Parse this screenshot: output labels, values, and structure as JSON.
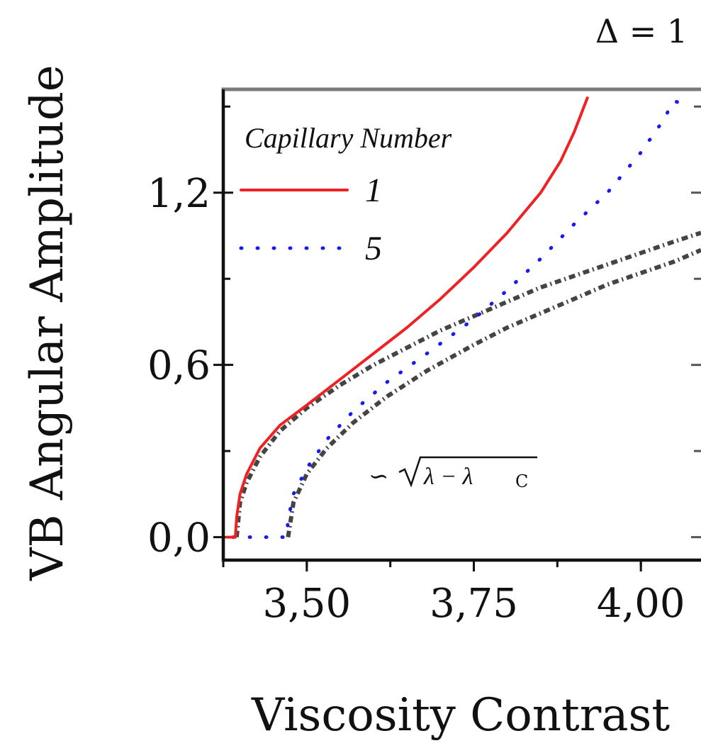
{
  "chart_data": {
    "type": "line",
    "annotation_top": "Δ = 1",
    "xlabel": "Viscosity Contrast",
    "ylabel": "VB Angular Amplitude",
    "xlim": [
      3.375,
      4.09
    ],
    "ylim": [
      -0.08,
      1.56
    ],
    "xticks": [
      "3,50",
      "3,75",
      "4,00"
    ],
    "xtick_values": [
      3.5,
      3.75,
      4.0
    ],
    "yticks": [
      "0,0",
      "0,6",
      "1,2"
    ],
    "ytick_values": [
      0.0,
      0.6,
      1.2
    ],
    "legend": {
      "title": "Capillary Number",
      "entries": [
        "1",
        "5"
      ],
      "placement": "top-left"
    },
    "fit_label": "∽ √(λ − λc)",
    "series": [
      {
        "name": "1",
        "color": "#ee2222",
        "style": "solid",
        "x": [
          3.38,
          3.393,
          3.395,
          3.4,
          3.41,
          3.43,
          3.46,
          3.5,
          3.55,
          3.6,
          3.65,
          3.7,
          3.75,
          3.8,
          3.85,
          3.88,
          3.9,
          3.91,
          3.92
        ],
        "y": [
          0.0,
          0.0,
          0.07,
          0.15,
          0.22,
          0.31,
          0.39,
          0.46,
          0.55,
          0.64,
          0.73,
          0.83,
          0.94,
          1.06,
          1.2,
          1.31,
          1.41,
          1.47,
          1.53
        ]
      },
      {
        "name": "5",
        "color": "#1a1aee",
        "style": "dotted",
        "x": [
          3.39,
          3.43,
          3.47,
          3.472,
          3.48,
          3.5,
          3.53,
          3.57,
          3.62,
          3.68,
          3.75,
          3.8,
          3.85,
          3.9,
          3.95,
          4.0,
          4.03,
          4.05,
          4.07
        ],
        "y": [
          0.0,
          0.0,
          0.0,
          0.06,
          0.15,
          0.24,
          0.34,
          0.44,
          0.54,
          0.64,
          0.76,
          0.86,
          0.97,
          1.09,
          1.2,
          1.34,
          1.44,
          1.52,
          1.5
        ]
      },
      {
        "name": "",
        "color": "#444444",
        "style": "dash-dot",
        "x": [
          3.395,
          3.4,
          3.41,
          3.43,
          3.46,
          3.5,
          3.55,
          3.6,
          3.65,
          3.7,
          3.75,
          3.8,
          3.85,
          3.9,
          3.95,
          4.0,
          4.05,
          4.09
        ],
        "y": [
          0.0,
          0.12,
          0.19,
          0.28,
          0.37,
          0.45,
          0.53,
          0.6,
          0.66,
          0.72,
          0.77,
          0.82,
          0.87,
          0.91,
          0.95,
          0.99,
          1.03,
          1.06
        ]
      },
      {
        "name": "",
        "color": "#444444",
        "style": "dash-dot",
        "x": [
          3.472,
          3.48,
          3.5,
          3.53,
          3.57,
          3.62,
          3.68,
          3.75,
          3.8,
          3.85,
          3.9,
          3.95,
          4.0,
          4.05,
          4.09
        ],
        "y": [
          0.0,
          0.12,
          0.22,
          0.31,
          0.4,
          0.49,
          0.58,
          0.67,
          0.73,
          0.78,
          0.83,
          0.88,
          0.92,
          0.96,
          1.0
        ]
      }
    ]
  }
}
